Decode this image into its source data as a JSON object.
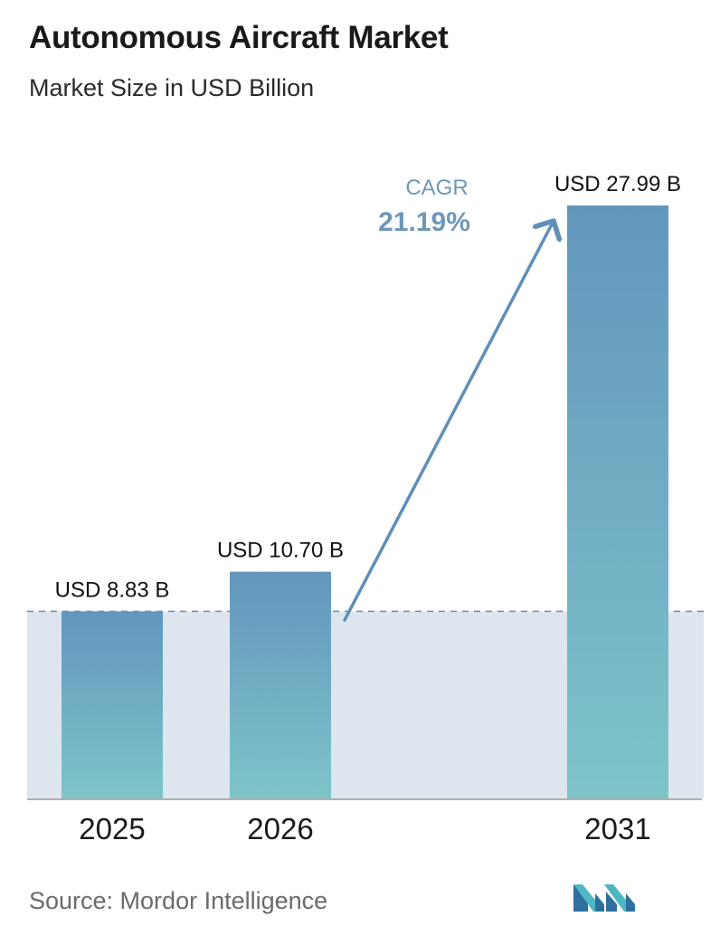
{
  "title": "Autonomous Aircraft Market",
  "subtitle": "Market Size in USD Billion",
  "source": "Source:  Mordor Intelligence",
  "logo": "Mordor Intelligence logo",
  "colors": {
    "bar_top": "#6396bd",
    "bar_bottom": "#7ec4c9",
    "band": "#dde6ef",
    "dashed_line": "#6b8fae",
    "cagr_text": "#6f97b8",
    "arrow": "#5f8fb8",
    "axis": "#b0b0b0"
  },
  "chart_data": {
    "type": "bar",
    "categories": [
      "2025",
      "2026",
      "2031"
    ],
    "values": [
      8.83,
      10.7,
      27.99
    ],
    "value_labels": [
      "USD 8.83 B",
      "USD 10.70 B",
      "USD 27.99 B"
    ],
    "ylim": [
      0,
      28
    ],
    "cagr": {
      "label": "CAGR",
      "value": "21.19%",
      "from": "2026",
      "to": "2031"
    },
    "reference_line": {
      "value": 8.83,
      "style": "dashed"
    },
    "grid": false
  }
}
